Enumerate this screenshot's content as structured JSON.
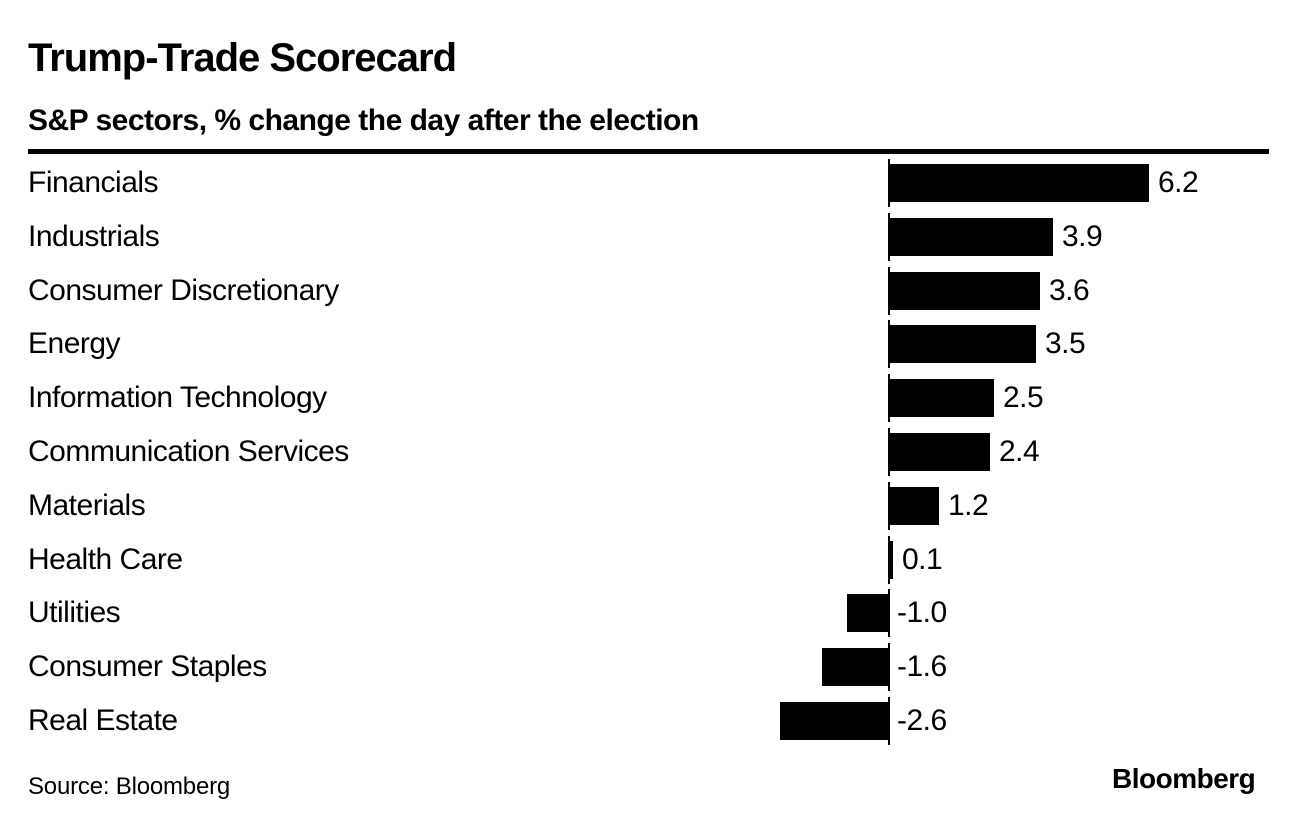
{
  "page": {
    "background": "#ffffff",
    "text_color": "#000000"
  },
  "header": {
    "title": "Trump-Trade Scorecard",
    "subtitle": "S&P sectors, % change the day after the election"
  },
  "footer": {
    "source": "Source: Bloomberg",
    "brand": "Bloomberg"
  },
  "chart_data": {
    "type": "bar",
    "orientation": "horizontal",
    "title": "Trump-Trade Scorecard",
    "subtitle": "S&P sectors, % change the day after the election",
    "categories": [
      "Financials",
      "Industrials",
      "Consumer Discretionary",
      "Energy",
      "Information Technology",
      "Communication Services",
      "Materials",
      "Health Care",
      "Utilities",
      "Consumer Staples",
      "Real Estate"
    ],
    "values": [
      6.2,
      3.9,
      3.6,
      3.5,
      2.5,
      2.4,
      1.2,
      0.1,
      -1.0,
      -1.6,
      -2.6
    ],
    "value_labels": [
      "6.2",
      "3.9",
      "3.6",
      "3.5",
      "2.5",
      "2.4",
      "1.2",
      "0.1",
      "-1.0",
      "-1.6",
      "-2.6"
    ],
    "xlabel": "",
    "ylabel": "",
    "xlim": [
      -3,
      6.5
    ],
    "bar_color": "#000000",
    "background_color": "#ffffff",
    "grid": false,
    "legend": false,
    "value_label_position": "bar-end",
    "zero_axis": "tick-segments-per-bar",
    "source": "Bloomberg"
  }
}
